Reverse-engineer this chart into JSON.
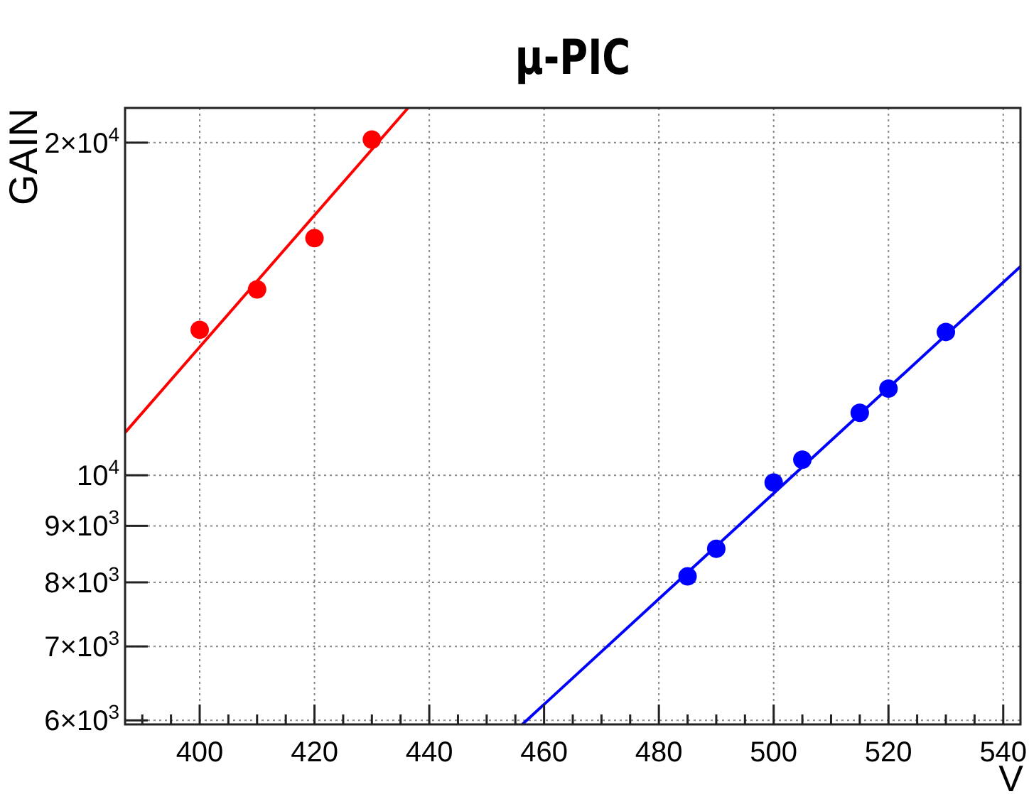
{
  "chart_data": {
    "type": "scatter",
    "title": "μ-PIC",
    "xlabel": "V",
    "ylabel": "GAIN",
    "log": "y",
    "grid": true,
    "marker": "circle",
    "xlim": [
      387,
      543
    ],
    "ylim": [
      5950,
      21500
    ],
    "xticks": [
      {
        "value": 390,
        "label": null
      },
      {
        "value": 395,
        "label": null
      },
      400,
      {
        "value": 405,
        "label": null
      },
      {
        "value": 410,
        "label": null
      },
      {
        "value": 415,
        "label": null
      },
      420,
      {
        "value": 425,
        "label": null
      },
      {
        "value": 430,
        "label": null
      },
      {
        "value": 435,
        "label": null
      },
      440,
      {
        "value": 445,
        "label": null
      },
      {
        "value": 450,
        "label": null
      },
      {
        "value": 455,
        "label": null
      },
      460,
      {
        "value": 465,
        "label": null
      },
      {
        "value": 470,
        "label": null
      },
      {
        "value": 475,
        "label": null
      },
      480,
      {
        "value": 485,
        "label": null
      },
      {
        "value": 490,
        "label": null
      },
      {
        "value": 495,
        "label": null
      },
      500,
      {
        "value": 505,
        "label": null
      },
      {
        "value": 510,
        "label": null
      },
      {
        "value": 515,
        "label": null
      },
      520,
      {
        "value": 525,
        "label": null
      },
      {
        "value": 530,
        "label": null
      },
      {
        "value": 535,
        "label": null
      },
      540
    ],
    "yticks": [
      {
        "value": 6000,
        "label": "6×10$^{3}$"
      },
      {
        "value": 7000,
        "label": "7×10$^{3}$"
      },
      {
        "value": 8000,
        "label": "8×10$^{3}$"
      },
      {
        "value": 9000,
        "label": "9×10$^{3}$"
      },
      {
        "value": 10000,
        "label": "10$^{4}$"
      },
      {
        "value": 20000,
        "label": "2×10$^{4}$"
      }
    ],
    "series": [
      {
        "color": "#ff0000",
        "x": [
          400,
          410,
          420,
          430
        ],
        "values": [
          13540,
          14730,
          16390,
          20130
        ]
      },
      {
        "type": "line",
        "color": "#ff0000",
        "x": [
          387,
          436.3
        ],
        "values": [
          10930,
          21500
        ],
        "marker": "none"
      },
      {
        "color": "#0000ff",
        "x": [
          485,
          490,
          500,
          505,
          515,
          520,
          530
        ],
        "values": [
          8100,
          8580,
          9850,
          10330,
          11390,
          11980,
          13480
        ]
      },
      {
        "type": "line",
        "color": "#0000ff",
        "x": [
          456.2,
          543
        ],
        "values": [
          5950,
          15450
        ],
        "marker": "none"
      }
    ]
  }
}
